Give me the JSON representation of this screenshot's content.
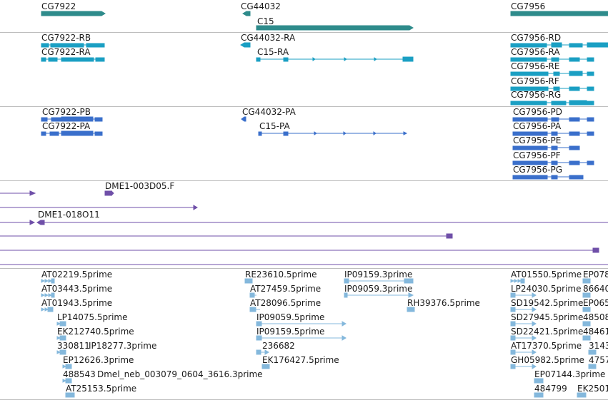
{
  "colors": {
    "gene": "#2e8b8b",
    "mrna": "#1a9fc3",
    "protein": "#3a6fcb",
    "est": "#6f4fa8",
    "reads": "#84b8dc",
    "divider": "#bdbdbd"
  },
  "genes": {
    "cg7922": "CG7922",
    "cg44032": "CG44032",
    "c15": "C15",
    "cg7956": "CG7956"
  },
  "mrnas": {
    "cg7922_rb": "CG7922-RB",
    "cg7922_ra": "CG7922-RA",
    "cg44032_ra": "CG44032-RA",
    "c15_ra": "C15-RA",
    "cg7956_rd": "CG7956-RD",
    "cg7956_ra": "CG7956-RA",
    "cg7956_re": "CG7956-RE",
    "cg7956_rf": "CG7956-RF",
    "cg7956_rg": "CG7956-RG"
  },
  "proteins": {
    "cg7922_pb": "CG7922-PB",
    "cg7922_pa": "CG7922-PA",
    "cg44032_pa": "CG44032-PA",
    "c15_pa": "C15-PA",
    "cg7956_pd": "CG7956-PD",
    "cg7956_pa": "CG7956-PA",
    "cg7956_pe": "CG7956-PE",
    "cg7956_pf": "CG7956-PF",
    "cg7956_pg": "CG7956-PG"
  },
  "ests": {
    "dme1_003d05": "DME1-003D05.F",
    "dme1_018o11": "DME1-018O11"
  },
  "reads": {
    "r1": "AT02219.5prime",
    "r2": "AT03443.5prime",
    "r3": "AT01943.5prime",
    "r4": "LP14075.5prime",
    "r5": "EK212740.5prime",
    "r6": "330811",
    "r7": "IP18277.3prime",
    "r8": "EP12626.3prime",
    "r9": "488543",
    "r10": "Dmel_neb_003079_0604_3616.3prime",
    "r11": "AT25153.5prime",
    "r12": "RE23610.5prime",
    "r13": "AT27459.5prime",
    "r14": "AT28096.5prime",
    "r15": "IP09059.5prime",
    "r16": "IP09159.5prime",
    "r17": "236682",
    "r18": "EK176427.5prime",
    "r19": "IP09159.3prime",
    "r20": "IP09059.3prime",
    "r21": "RH39376.5prime",
    "r22": "AT01550.5prime",
    "r23": "LP24030.5prime",
    "r24": "SD19542.5prime",
    "r25": "SD27945.5prime",
    "r26": "SD22421.5prime",
    "r27": "AT17370.5prime",
    "r28": "GH05982.5prime",
    "r29": "EP07144.3prime",
    "r30": "484799",
    "r31": "EP078",
    "r32": "86640",
    "r33": "EP065",
    "r34": "48508",
    "r35": "48461",
    "r36": "3143",
    "r37": "4757",
    "r38": "EK2501"
  }
}
